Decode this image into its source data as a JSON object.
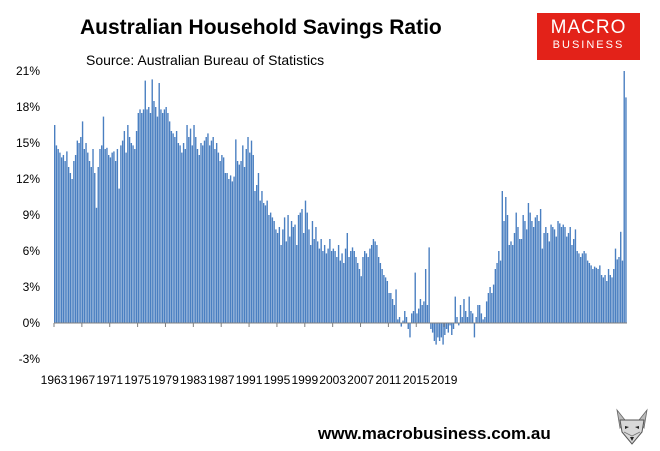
{
  "title": "Australian Household Savings Ratio",
  "subtitle": "Source: Australian Bureau of Statistics",
  "logo": {
    "line1": "MACRO",
    "line2": "BUSINESS"
  },
  "footer": "www.macrobusiness.com.au",
  "colors": {
    "bar": "#4a7fc1",
    "logo_bg": "#e32219"
  },
  "chart_data": {
    "type": "bar",
    "title": "Australian Household Savings Ratio",
    "subtitle": "Source: Australian Bureau of Statistics",
    "frequency": "quarterly",
    "start": "1963",
    "ylim": [
      -3,
      21
    ],
    "yticks": [
      "-3%",
      "0%",
      "3%",
      "6%",
      "9%",
      "12%",
      "15%",
      "18%",
      "21%"
    ],
    "xticks": [
      "1963",
      "1967",
      "1971",
      "1975",
      "1979",
      "1983",
      "1987",
      "1991",
      "1995",
      "1999",
      "2003",
      "2007",
      "2011",
      "2015",
      "2019"
    ],
    "values": [
      16.5,
      14.8,
      14.5,
      14.2,
      13.8,
      14.0,
      13.5,
      14.3,
      13.0,
      12.5,
      12.0,
      13.5,
      14.0,
      15.2,
      15.0,
      15.5,
      16.8,
      14.5,
      15.0,
      14.2,
      13.5,
      13.0,
      14.5,
      12.5,
      9.6,
      13.0,
      14.5,
      14.8,
      17.2,
      14.5,
      14.6,
      14.0,
      13.8,
      14.2,
      14.3,
      13.5,
      14.5,
      11.2,
      14.8,
      15.2,
      16.0,
      14.2,
      16.5,
      15.5,
      15.0,
      14.8,
      14.5,
      16.0,
      17.5,
      17.8,
      17.5,
      17.8,
      20.2,
      17.8,
      18.0,
      17.5,
      20.3,
      18.5,
      18.0,
      17.2,
      20.0,
      17.8,
      17.5,
      17.8,
      18.0,
      17.5,
      16.8,
      16.0,
      15.8,
      15.5,
      16.0,
      15.0,
      14.8,
      14.2,
      15.0,
      14.5,
      16.5,
      15.5,
      16.2,
      14.8,
      16.5,
      15.5,
      14.5,
      14.0,
      15.0,
      14.8,
      15.2,
      15.5,
      15.8,
      14.8,
      15.2,
      15.5,
      14.5,
      15.0,
      14.2,
      13.5,
      14.0,
      13.8,
      12.5,
      12.5,
      12.0,
      12.3,
      11.8,
      12.2,
      15.3,
      13.5,
      13.2,
      13.5,
      14.8,
      13.0,
      14.5,
      15.5,
      14.2,
      15.2,
      14.0,
      11.0,
      11.5,
      12.5,
      10.2,
      11.0,
      10.0,
      9.8,
      10.2,
      9.0,
      9.2,
      8.8,
      8.5,
      7.8,
      7.5,
      8.0,
      6.5,
      7.8,
      8.8,
      6.8,
      9.0,
      7.2,
      8.5,
      8.0,
      8.2,
      6.5,
      9.0,
      9.2,
      9.5,
      7.5,
      10.2,
      9.2,
      7.8,
      6.5,
      8.5,
      7.0,
      8.0,
      6.8,
      6.2,
      7.0,
      6.0,
      6.5,
      5.8,
      6.2,
      7.0,
      6.0,
      6.2,
      6.0,
      5.5,
      6.5,
      5.2,
      5.8,
      5.0,
      6.2,
      7.5,
      5.5,
      6.0,
      6.3,
      6.0,
      5.5,
      5.0,
      4.5,
      3.9,
      5.5,
      6.0,
      5.8,
      5.5,
      6.2,
      6.5,
      7.0,
      6.8,
      6.5,
      5.5,
      5.0,
      4.5,
      4.0,
      3.8,
      3.5,
      2.5,
      2.5,
      2.0,
      1.5,
      2.8,
      0.3,
      0.5,
      -0.3,
      0.2,
      1.0,
      0.5,
      -0.5,
      -1.2,
      0.8,
      1.0,
      4.2,
      0.8,
      1.2,
      2.0,
      1.5,
      1.8,
      4.5,
      1.5,
      6.3,
      -0.5,
      -0.8,
      -1.5,
      -1.8,
      -1.2,
      -1.5,
      -1.2,
      -1.8,
      -1.0,
      -0.5,
      -0.8,
      -0.2,
      -1.0,
      -0.5,
      2.2,
      0.5,
      -0.2,
      1.5,
      0.5,
      2.0,
      1.0,
      0.5,
      2.2,
      1.0,
      0.8,
      -1.2,
      0.5,
      1.5,
      1.5,
      0.8,
      0.3,
      0.5,
      1.8,
      2.5,
      3.0,
      2.5,
      3.2,
      4.5,
      5.0,
      6.0,
      5.2,
      11.0,
      8.5,
      10.5,
      9.0,
      6.5,
      6.8,
      6.5,
      7.5,
      9.2,
      8.0,
      7.0,
      7.0,
      9.0,
      8.5,
      7.8,
      10.0,
      9.2,
      8.5,
      8.0,
      8.8,
      9.0,
      8.5,
      9.5,
      6.2,
      7.5,
      8.0,
      7.5,
      6.8,
      8.2,
      8.0,
      7.8,
      7.2,
      8.5,
      8.3,
      8.0,
      8.2,
      8.0,
      7.2,
      7.5,
      8.0,
      6.5,
      7.0,
      7.8,
      6.0,
      5.8,
      5.5,
      5.8,
      6.0,
      5.8,
      5.2,
      5.0,
      4.8,
      4.5,
      4.7,
      4.6,
      4.5,
      4.8,
      4.0,
      3.8,
      4.0,
      3.5,
      4.5,
      4.0,
      3.8,
      4.5,
      6.2,
      5.3,
      5.5,
      7.6,
      5.2,
      21.0,
      18.8
    ]
  }
}
